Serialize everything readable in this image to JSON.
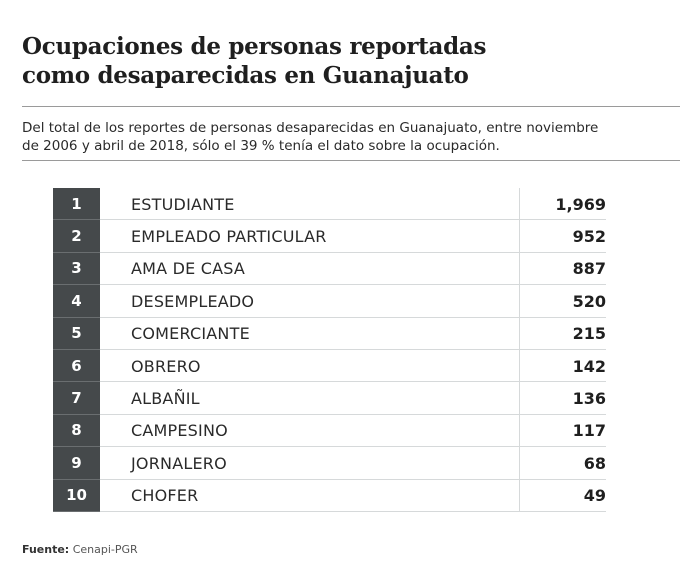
{
  "title_line1": "Ocupaciones de personas reportadas",
  "title_line2": "como desaparecidas en Guanajuato",
  "subtitle_line1": "Del total de los reportes de personas desaparecidas en Guanajuato, entre noviembre",
  "subtitle_line2": "de 2006 y abril de 2018, sólo el 39 % tenía el dato sobre la ocupación.",
  "source_label": "Fuente:",
  "source_value": "Cenapi-PGR",
  "colors": {
    "rank_bg": "#45494b",
    "divider": "#d6d9da"
  },
  "chart_data": {
    "type": "table",
    "title": "Ocupaciones de personas reportadas como desaparecidas en Guanajuato",
    "columns": [
      "rank",
      "occupation",
      "count"
    ],
    "rows": [
      {
        "rank": "1",
        "occupation": "ESTUDIANTE",
        "count": "1,969"
      },
      {
        "rank": "2",
        "occupation": "EMPLEADO PARTICULAR",
        "count": "952"
      },
      {
        "rank": "3",
        "occupation": "AMA DE CASA",
        "count": "887"
      },
      {
        "rank": "4",
        "occupation": "DESEMPLEADO",
        "count": "520"
      },
      {
        "rank": "5",
        "occupation": "COMERCIANTE",
        "count": "215"
      },
      {
        "rank": "6",
        "occupation": "OBRERO",
        "count": "142"
      },
      {
        "rank": "7",
        "occupation": "ALBAÑIL",
        "count": "136"
      },
      {
        "rank": "8",
        "occupation": "CAMPESINO",
        "count": "117"
      },
      {
        "rank": "9",
        "occupation": "JORNALERO",
        "count": "68"
      },
      {
        "rank": "10",
        "occupation": "CHOFER",
        "count": "49"
      }
    ]
  }
}
